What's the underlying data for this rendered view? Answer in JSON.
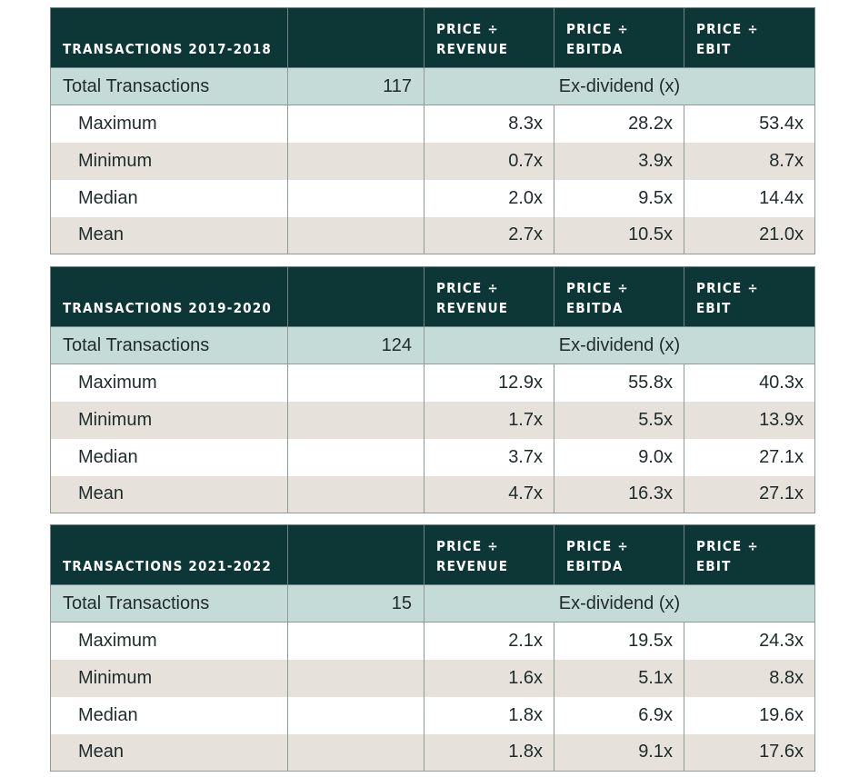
{
  "tables": [
    {
      "title": "TRANSACTIONS 2017-2018",
      "metric_headers": [
        {
          "line1": "PRICE ÷",
          "line2": "REVENUE"
        },
        {
          "line1": "PRICE ÷",
          "line2": "EBITDA"
        },
        {
          "line1": "PRICE ÷",
          "line2": "EBIT"
        }
      ],
      "total_label": "Total Transactions",
      "total_count": "117",
      "unit_label": "Ex-dividend (x)",
      "rows": [
        {
          "label": "Maximum",
          "revenue": "8.3x",
          "ebitda": "28.2x",
          "ebit": "53.4x"
        },
        {
          "label": "Minimum",
          "revenue": "0.7x",
          "ebitda": "3.9x",
          "ebit": "8.7x"
        },
        {
          "label": "Median",
          "revenue": "2.0x",
          "ebitda": "9.5x",
          "ebit": "14.4x"
        },
        {
          "label": "Mean",
          "revenue": "2.7x",
          "ebitda": "10.5x",
          "ebit": "21.0x"
        }
      ]
    },
    {
      "title": "TRANSACTIONS 2019-2020",
      "metric_headers": [
        {
          "line1": "PRICE ÷",
          "line2": "REVENUE"
        },
        {
          "line1": "PRICE ÷",
          "line2": "EBITDA"
        },
        {
          "line1": "PRICE ÷",
          "line2": "EBIT"
        }
      ],
      "total_label": "Total Transactions",
      "total_count": "124",
      "unit_label": "Ex-dividend (x)",
      "rows": [
        {
          "label": "Maximum",
          "revenue": "12.9x",
          "ebitda": "55.8x",
          "ebit": "40.3x"
        },
        {
          "label": "Minimum",
          "revenue": "1.7x",
          "ebitda": "5.5x",
          "ebit": "13.9x"
        },
        {
          "label": "Median",
          "revenue": "3.7x",
          "ebitda": "9.0x",
          "ebit": "27.1x"
        },
        {
          "label": "Mean",
          "revenue": "4.7x",
          "ebitda": "16.3x",
          "ebit": "27.1x"
        }
      ]
    },
    {
      "title": "TRANSACTIONS 2021-2022",
      "metric_headers": [
        {
          "line1": "PRICE ÷",
          "line2": "REVENUE"
        },
        {
          "line1": "PRICE ÷",
          "line2": "EBITDA"
        },
        {
          "line1": "PRICE ÷",
          "line2": "EBIT"
        }
      ],
      "total_label": "Total Transactions",
      "total_count": "15",
      "unit_label": "Ex-dividend (x)",
      "rows": [
        {
          "label": "Maximum",
          "revenue": "2.1x",
          "ebitda": "19.5x",
          "ebit": "24.3x"
        },
        {
          "label": "Minimum",
          "revenue": "1.6x",
          "ebitda": "5.1x",
          "ebit": "8.8x"
        },
        {
          "label": "Median",
          "revenue": "1.8x",
          "ebitda": "6.9x",
          "ebit": "19.6x"
        },
        {
          "label": "Mean",
          "revenue": "1.8x",
          "ebitda": "9.1x",
          "ebit": "17.6x"
        }
      ]
    }
  ],
  "colors": {
    "header_bg": "#0d3637",
    "total_row_bg": "#c4dbd8",
    "band_bg": "#e6e2db",
    "text": "#1f2b2b"
  }
}
